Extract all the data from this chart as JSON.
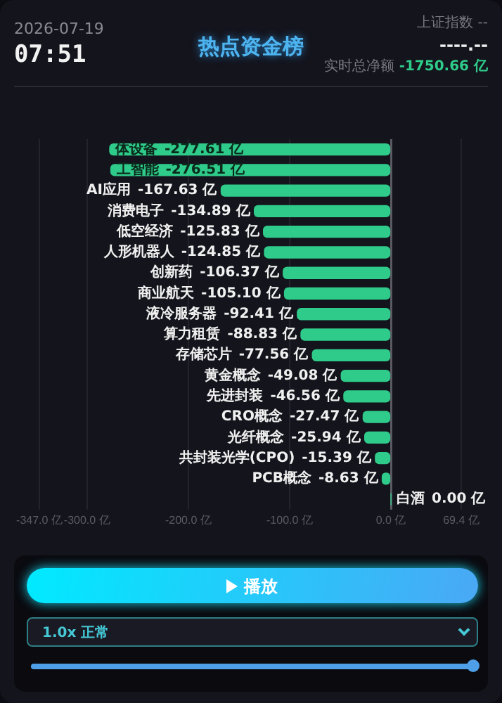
{
  "chart_data": {
    "type": "bar",
    "orientation": "horizontal",
    "title": "热点资金榜",
    "annotations": [
      "2026-07-19",
      "07:51",
      "上证指数 --",
      "----.--",
      "实时总净额",
      "-1750.66 亿",
      "播放",
      "1.0x 正常"
    ],
    "categories": [
      "体设备",
      "工智能",
      "AI应用",
      "消费电子",
      "低空经济",
      "人形机器人",
      "创新药",
      "商业航天",
      "液冷服务器",
      "算力租赁",
      "存储芯片",
      "黄金概念",
      "先进封装",
      "CRO概念",
      "光纤概念",
      "共封装光学(CPO)",
      "PCB概念",
      "白酒"
    ],
    "values": [
      -277.61,
      -276.51,
      -167.63,
      -134.89,
      -125.83,
      -124.85,
      -106.37,
      -105.1,
      -92.41,
      -88.83,
      -77.56,
      -49.08,
      -46.56,
      -27.47,
      -25.94,
      -15.39,
      -8.63,
      0.0
    ],
    "value_labels": [
      "-277.61 亿",
      "-276.51 亿",
      "-167.63 亿",
      "-134.89 亿",
      "-125.83 亿",
      "-124.85 亿",
      "-106.37 亿",
      "-105.10 亿",
      "-92.41 亿",
      "-88.83 亿",
      "-77.56 亿",
      "-49.08 亿",
      "-46.56 亿",
      "-27.47 亿",
      "-25.94 亿",
      "-15.39 亿",
      "-8.63 亿",
      "0.00 亿"
    ],
    "color": "#2fcb8a",
    "xlim": [
      -347.0,
      69.4
    ],
    "xticks": [
      {
        "value": -347.0,
        "label": "-347.0 亿"
      },
      {
        "value": -300.0,
        "label": "-300.0 亿"
      },
      {
        "value": -200.0,
        "label": "-200.0 亿"
      },
      {
        "value": -100.0,
        "label": "-100.0 亿"
      },
      {
        "value": 0.0,
        "label": "0.0 亿"
      },
      {
        "value": 69.4,
        "label": "69.4 亿"
      }
    ],
    "grid": "x",
    "legend": false
  }
}
